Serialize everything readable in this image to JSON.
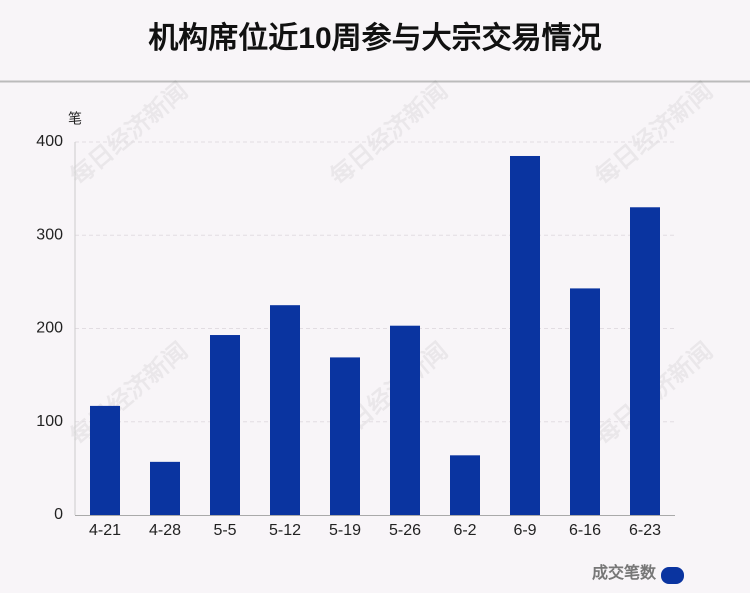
{
  "chart_data": {
    "type": "bar",
    "title": "机构席位近10周参与大宗交易情况",
    "y_unit": "笔",
    "watermark": "每日经济新闻",
    "categories": [
      "4-21",
      "4-28",
      "5-5",
      "5-12",
      "5-19",
      "5-26",
      "6-2",
      "6-9",
      "6-16",
      "6-23"
    ],
    "series": [
      {
        "name": "成交笔数",
        "color": "#0a34a0",
        "values": [
          117,
          57,
          193,
          225,
          169,
          203,
          64,
          385,
          243,
          330
        ]
      }
    ],
    "ylim": [
      0,
      400
    ],
    "yticks": [
      0,
      100,
      200,
      300,
      400
    ],
    "grid": true,
    "legend": "bottom-right"
  }
}
